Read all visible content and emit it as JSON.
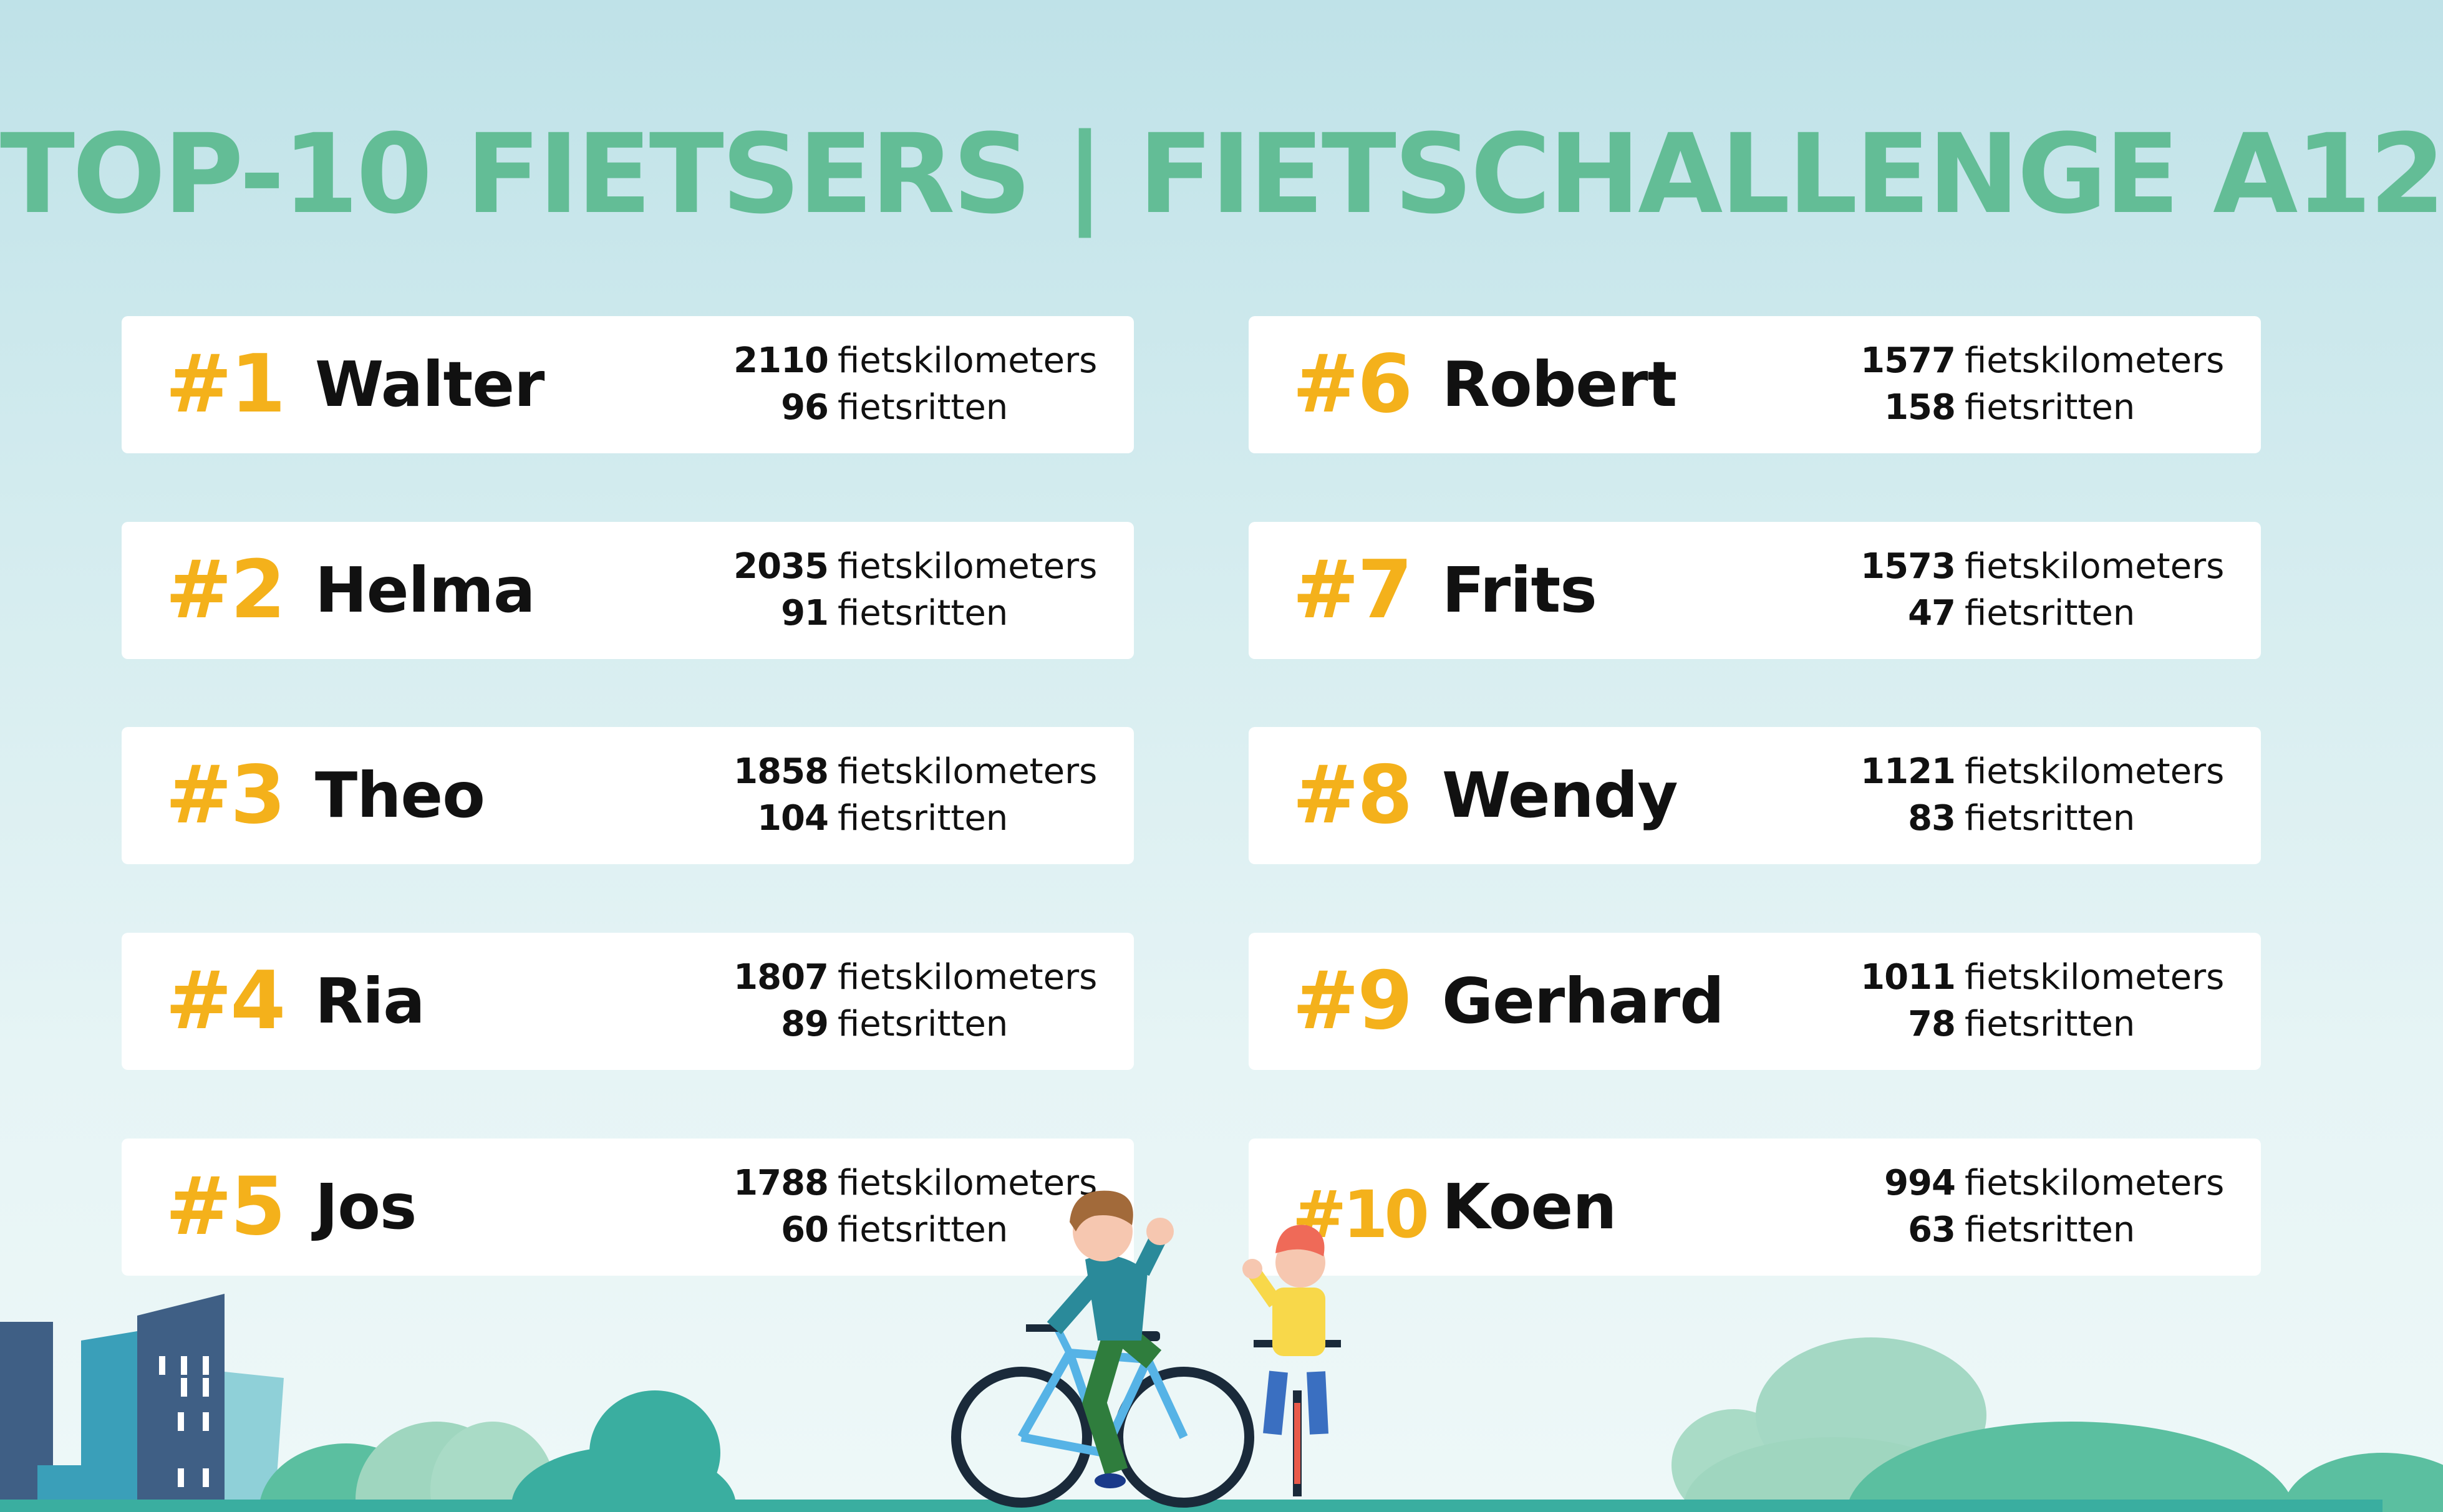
{
  "title": "TOP-10 FIETSERS | FIETSCHALLENGE A12",
  "colors": {
    "title": "#63bd96",
    "rank": "#f4b11b",
    "text": "#111111",
    "card": "#ffffff"
  },
  "cyclists": [
    {
      "rank": "#1",
      "name": "Walter",
      "km": "2110",
      "km_unit": "fietskilometers",
      "rides": "96",
      "rides_unit": "fietsritten"
    },
    {
      "rank": "#2",
      "name": "Helma",
      "km": "2035",
      "km_unit": "fietskilometers",
      "rides": "91",
      "rides_unit": "fietsritten"
    },
    {
      "rank": "#3",
      "name": "Theo",
      "km": "1858",
      "km_unit": "fietskilometers",
      "rides": "104",
      "rides_unit": "fietsritten"
    },
    {
      "rank": "#4",
      "name": "Ria",
      "km": "1807",
      "km_unit": "fietskilometers",
      "rides": "89",
      "rides_unit": "fietsritten"
    },
    {
      "rank": "#5",
      "name": "Jos",
      "km": "1788",
      "km_unit": "fietskilometers",
      "rides": "60",
      "rides_unit": "fietsritten"
    },
    {
      "rank": "#6",
      "name": "Robert",
      "km": "1577",
      "km_unit": "fietskilometers",
      "rides": "158",
      "rides_unit": "fietsritten"
    },
    {
      "rank": "#7",
      "name": "Frits",
      "km": "1573",
      "km_unit": "fietskilometers",
      "rides": "47",
      "rides_unit": "fietsritten"
    },
    {
      "rank": "#8",
      "name": "Wendy",
      "km": "1121",
      "km_unit": "fietskilometers",
      "rides": "83",
      "rides_unit": "fietsritten"
    },
    {
      "rank": "#9",
      "name": "Gerhard",
      "km": "1011",
      "km_unit": "fietskilometers",
      "rides": "78",
      "rides_unit": "fietsritten"
    },
    {
      "rank": "#10",
      "name": "Koen",
      "km": "994",
      "km_unit": "fietskilometers",
      "rides": "63",
      "rides_unit": "fietsritten"
    }
  ],
  "illustration": {
    "icons": [
      "city-buildings-icon",
      "bushes-icon",
      "cyclist-adult-icon",
      "cyclist-child-icon",
      "hills-icon"
    ]
  }
}
